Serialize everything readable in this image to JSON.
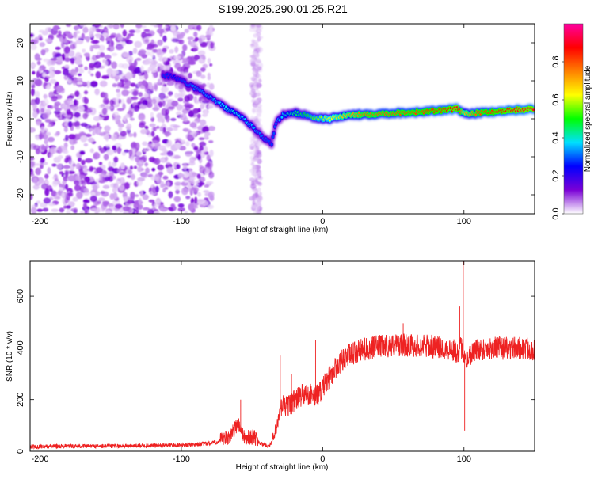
{
  "title": "S199.2025.290.01.25.R21",
  "chart_data": [
    {
      "type": "heatmap",
      "title": "",
      "xlabel": "Height of straight line (km)",
      "ylabel": "Frequency (Hz)",
      "xlim": [
        -207,
        150
      ],
      "ylim": [
        -25,
        25
      ],
      "x_ticks": [
        {
          "value": -200,
          "label": "-200"
        },
        {
          "value": -100,
          "label": "-100"
        },
        {
          "value": 0,
          "label": "0"
        },
        {
          "value": 100,
          "label": "100"
        }
      ],
      "y_ticks": [
        {
          "value": 20,
          "label": "20"
        },
        {
          "value": 10,
          "label": "10"
        },
        {
          "value": 0,
          "label": "0"
        },
        {
          "value": -10,
          "label": "-10"
        },
        {
          "value": -20,
          "label": "-20"
        }
      ],
      "colorbar": {
        "label": "Normalized spectral amplitude",
        "range": [
          0,
          1
        ],
        "ticks": [
          {
            "value": 0,
            "label": "0.0"
          },
          {
            "value": 0.2,
            "label": "0.2"
          },
          {
            "value": 0.4,
            "label": "0.4"
          },
          {
            "value": 0.6,
            "label": "0.6"
          },
          {
            "value": 0.8,
            "label": "0.8"
          }
        ],
        "colors": [
          "#ffffff",
          "#7a00d6",
          "#0000ff",
          "#00e0ff",
          "#00ff00",
          "#ffff00",
          "#ff8000",
          "#ff0000",
          "#ff00a0"
        ]
      },
      "noise_region": {
        "x_from": -207,
        "x_to": -78,
        "gap_band": [
          -50,
          -44
        ],
        "max_amplitude": 0.18
      },
      "signal_track": [
        {
          "x": -113,
          "freq": 11.5,
          "amp": 0.28
        },
        {
          "x": -105,
          "freq": 11,
          "amp": 0.25
        },
        {
          "x": -95,
          "freq": 9,
          "amp": 0.3
        },
        {
          "x": -85,
          "freq": 7,
          "amp": 0.32
        },
        {
          "x": -75,
          "freq": 4.5,
          "amp": 0.35
        },
        {
          "x": -65,
          "freq": 2,
          "amp": 0.4
        },
        {
          "x": -58,
          "freq": 0.5,
          "amp": 0.38
        },
        {
          "x": -50,
          "freq": -2,
          "amp": 0.35
        },
        {
          "x": -42,
          "freq": -5,
          "amp": 0.3
        },
        {
          "x": -36,
          "freq": -6.5,
          "amp": 0.28
        },
        {
          "x": -33,
          "freq": -1,
          "amp": 0.3
        },
        {
          "x": -28,
          "freq": 1,
          "amp": 0.38
        },
        {
          "x": -20,
          "freq": 1.5,
          "amp": 0.45
        },
        {
          "x": -12,
          "freq": 1,
          "amp": 0.5
        },
        {
          "x": -5,
          "freq": 0.2,
          "amp": 0.55
        },
        {
          "x": 5,
          "freq": 0,
          "amp": 0.62
        },
        {
          "x": 15,
          "freq": 0.8,
          "amp": 0.7
        },
        {
          "x": 30,
          "freq": 1.2,
          "amp": 0.78
        },
        {
          "x": 50,
          "freq": 1.5,
          "amp": 0.8
        },
        {
          "x": 70,
          "freq": 1.8,
          "amp": 0.82
        },
        {
          "x": 88,
          "freq": 2.3,
          "amp": 0.86
        },
        {
          "x": 95,
          "freq": 2.6,
          "amp": 0.9
        },
        {
          "x": 100,
          "freq": 1.5,
          "amp": 0.7
        },
        {
          "x": 110,
          "freq": 1.5,
          "amp": 0.8
        },
        {
          "x": 125,
          "freq": 2.0,
          "amp": 0.86
        },
        {
          "x": 140,
          "freq": 2.4,
          "amp": 0.9
        },
        {
          "x": 150,
          "freq": 2.5,
          "amp": 0.9
        }
      ]
    },
    {
      "type": "line",
      "title": "",
      "xlabel": "Height of straight line (km)",
      "ylabel": "SNR (10 * v/v)",
      "xlim": [
        -207,
        150
      ],
      "ylim": [
        0,
        735
      ],
      "x_ticks": [
        {
          "value": -200,
          "label": "-200"
        },
        {
          "value": -100,
          "label": "-100"
        },
        {
          "value": 0,
          "label": "0"
        },
        {
          "value": 100,
          "label": "100"
        }
      ],
      "y_ticks": [
        {
          "value": 0,
          "label": "0"
        },
        {
          "value": 200,
          "label": "200"
        },
        {
          "value": 400,
          "label": "400"
        },
        {
          "value": 600,
          "label": "600"
        }
      ],
      "series": [
        {
          "name": "SNR",
          "color": "#ee2222",
          "x": [
            -207,
            -180,
            -150,
            -120,
            -100,
            -90,
            -80,
            -75,
            -70,
            -65,
            -60,
            -57,
            -55,
            -52,
            -48,
            -45,
            -42,
            -38,
            -35,
            -32,
            -30,
            -28,
            -25,
            -20,
            -15,
            -10,
            -5,
            0,
            5,
            10,
            15,
            20,
            25,
            30,
            35,
            40,
            45,
            50,
            55,
            60,
            70,
            80,
            90,
            95,
            98,
            100,
            102,
            105,
            110,
            120,
            130,
            140,
            150
          ],
          "values": [
            18,
            20,
            20,
            22,
            25,
            27,
            30,
            35,
            45,
            60,
            110,
            75,
            45,
            55,
            55,
            35,
            25,
            20,
            45,
            100,
            160,
            180,
            175,
            195,
            215,
            225,
            210,
            245,
            285,
            330,
            360,
            375,
            385,
            395,
            400,
            405,
            408,
            410,
            412,
            410,
            408,
            405,
            395,
            385,
            400,
            385,
            350,
            380,
            395,
            400,
            398,
            400,
            395
          ],
          "spikes": [
            {
              "x": -58,
              "value": 200
            },
            {
              "x": -30,
              "value": 370
            },
            {
              "x": -22,
              "value": 300
            },
            {
              "x": -5,
              "value": 430
            },
            {
              "x": 57,
              "value": 495
            },
            {
              "x": 99.5,
              "value": 735
            },
            {
              "x": 100.5,
              "value": 80
            },
            {
              "x": 97,
              "value": 560
            }
          ]
        }
      ]
    }
  ]
}
